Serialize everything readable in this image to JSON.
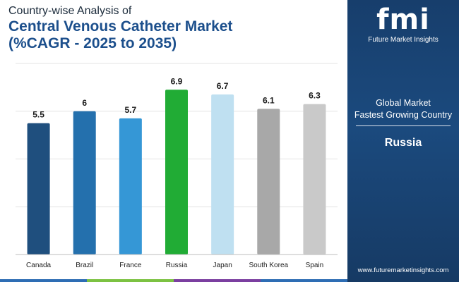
{
  "title": {
    "line1": "Country-wise Analysis of",
    "line2": "Central Venous Catheter Market",
    "line3": "(%CAGR - 2025 to 2035)"
  },
  "chart_data": {
    "type": "bar",
    "categories": [
      "Canada",
      "Brazil",
      "France",
      "Russia",
      "Japan",
      "South Korea",
      "Spain"
    ],
    "values": [
      5.5,
      6,
      5.7,
      6.9,
      6.7,
      6.1,
      6.3
    ],
    "value_labels": [
      "5.5",
      "6",
      "5.7",
      "6.9",
      "6.7",
      "6.1",
      "6.3"
    ],
    "colors": [
      "#1f4f7e",
      "#2470ad",
      "#3597d6",
      "#21ac35",
      "#bfe0f1",
      "#a8a8a8",
      "#c9c9c9"
    ],
    "ylim": [
      0,
      8
    ],
    "grid": true,
    "xlabel": "",
    "ylabel": ""
  },
  "brand": {
    "mark": "fmi",
    "name": "Future Market Insights"
  },
  "panel": {
    "line1": "Global Market",
    "line2": "Fastest Growing Country",
    "country": "Russia",
    "url": "www.futuremarketinsights.com"
  },
  "colors": {
    "panel_bg": "#173e6c",
    "title_accent": "#1c4f8c",
    "strip": [
      "#2e6db4",
      "#7cc242",
      "#7b3fa0",
      "#2e6db4"
    ]
  }
}
